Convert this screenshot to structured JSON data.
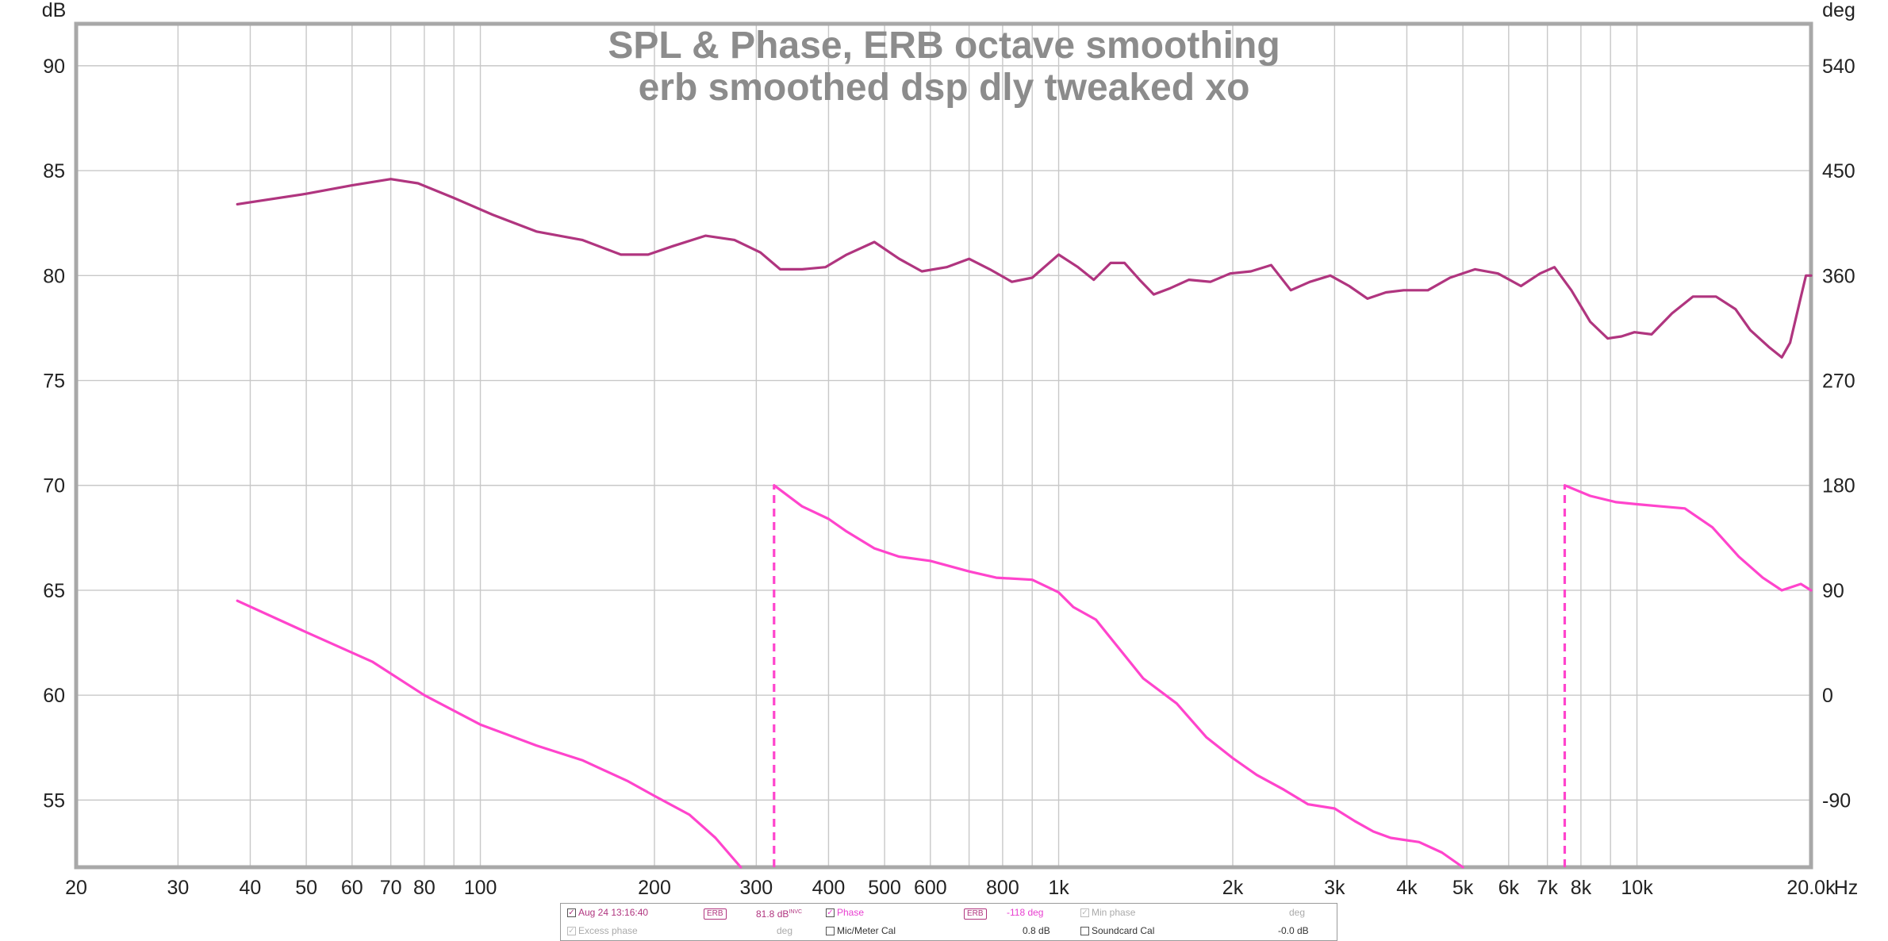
{
  "chart_data": {
    "type": "line",
    "title": "SPL & Phase, ERB octave smoothing",
    "subtitle": "erb smoothed dsp dly tweaked xo",
    "left_axis": {
      "unit": "dB",
      "ylim": [
        51.8,
        92
      ],
      "ticks": [
        55,
        60,
        65,
        70,
        75,
        80,
        85,
        90
      ]
    },
    "right_axis": {
      "unit": "deg",
      "ticks": [
        {
          "at": 55,
          "label": "-90"
        },
        {
          "at": 60,
          "label": "0"
        },
        {
          "at": 65,
          "label": "90"
        },
        {
          "at": 70,
          "label": "180"
        },
        {
          "at": 75,
          "label": "270"
        },
        {
          "at": 80,
          "label": "360"
        },
        {
          "at": 85,
          "label": "450"
        },
        {
          "at": 90,
          "label": "540"
        }
      ]
    },
    "x_axis": {
      "scale": "log",
      "unit": "Hz",
      "xlim": [
        20,
        20000
      ],
      "ticks": [
        {
          "v": 20,
          "label": "20"
        },
        {
          "v": 30,
          "label": "30"
        },
        {
          "v": 40,
          "label": "40"
        },
        {
          "v": 50,
          "label": "50"
        },
        {
          "v": 60,
          "label": "60"
        },
        {
          "v": 70,
          "label": "70"
        },
        {
          "v": 80,
          "label": "80"
        },
        {
          "v": 100,
          "label": "100"
        },
        {
          "v": 200,
          "label": "200"
        },
        {
          "v": 300,
          "label": "300"
        },
        {
          "v": 400,
          "label": "400"
        },
        {
          "v": 500,
          "label": "500"
        },
        {
          "v": 600,
          "label": "600"
        },
        {
          "v": 800,
          "label": "800"
        },
        {
          "v": 1000,
          "label": "1k"
        },
        {
          "v": 2000,
          "label": "2k"
        },
        {
          "v": 3000,
          "label": "3k"
        },
        {
          "v": 4000,
          "label": "4k"
        },
        {
          "v": 5000,
          "label": "5k"
        },
        {
          "v": 6000,
          "label": "6k"
        },
        {
          "v": 7000,
          "label": "7k"
        },
        {
          "v": 8000,
          "label": "8k"
        },
        {
          "v": 10000,
          "label": "10k"
        },
        {
          "v": 20000,
          "label": "20.0k"
        }
      ],
      "gridlines": [
        20,
        30,
        40,
        50,
        60,
        70,
        80,
        90,
        100,
        200,
        300,
        400,
        500,
        600,
        700,
        800,
        900,
        1000,
        2000,
        3000,
        4000,
        5000,
        6000,
        7000,
        8000,
        9000,
        10000,
        20000
      ]
    },
    "grid": true,
    "series": [
      {
        "name": "SPL",
        "color": "#b0357f",
        "axis": "dB",
        "points": [
          [
            38,
            83.4
          ],
          [
            50,
            83.9
          ],
          [
            60,
            84.3
          ],
          [
            70,
            84.6
          ],
          [
            78,
            84.4
          ],
          [
            90,
            83.7
          ],
          [
            105,
            82.9
          ],
          [
            125,
            82.1
          ],
          [
            150,
            81.7
          ],
          [
            175,
            81.0
          ],
          [
            195,
            81.0
          ],
          [
            215,
            81.4
          ],
          [
            245,
            81.9
          ],
          [
            275,
            81.7
          ],
          [
            305,
            81.1
          ],
          [
            330,
            80.3
          ],
          [
            360,
            80.3
          ],
          [
            395,
            80.4
          ],
          [
            430,
            81.0
          ],
          [
            480,
            81.6
          ],
          [
            530,
            80.8
          ],
          [
            580,
            80.2
          ],
          [
            640,
            80.4
          ],
          [
            700,
            80.8
          ],
          [
            760,
            80.3
          ],
          [
            830,
            79.7
          ],
          [
            900,
            79.9
          ],
          [
            1000,
            81.0
          ],
          [
            1080,
            80.4
          ],
          [
            1150,
            79.8
          ],
          [
            1230,
            80.6
          ],
          [
            1300,
            80.6
          ],
          [
            1380,
            79.8
          ],
          [
            1460,
            79.1
          ],
          [
            1560,
            79.4
          ],
          [
            1680,
            79.8
          ],
          [
            1830,
            79.7
          ],
          [
            1980,
            80.1
          ],
          [
            2150,
            80.2
          ],
          [
            2330,
            80.5
          ],
          [
            2520,
            79.3
          ],
          [
            2720,
            79.7
          ],
          [
            2950,
            80.0
          ],
          [
            3180,
            79.5
          ],
          [
            3420,
            78.9
          ],
          [
            3680,
            79.2
          ],
          [
            3950,
            79.3
          ],
          [
            4350,
            79.3
          ],
          [
            4750,
            79.9
          ],
          [
            5250,
            80.3
          ],
          [
            5750,
            80.1
          ],
          [
            6300,
            79.5
          ],
          [
            6800,
            80.1
          ],
          [
            7200,
            80.4
          ],
          [
            7700,
            79.3
          ],
          [
            8300,
            77.8
          ],
          [
            8900,
            77.0
          ],
          [
            9400,
            77.1
          ],
          [
            9900,
            77.3
          ],
          [
            10600,
            77.2
          ],
          [
            11500,
            78.2
          ],
          [
            12500,
            79.0
          ],
          [
            13700,
            79.0
          ],
          [
            14800,
            78.4
          ],
          [
            15700,
            77.4
          ],
          [
            16900,
            76.6
          ],
          [
            17800,
            76.1
          ],
          [
            18400,
            76.8
          ],
          [
            19100,
            78.7
          ],
          [
            19600,
            80.0
          ],
          [
            20000,
            80.0
          ]
        ]
      },
      {
        "name": "Phase",
        "color": "#ff44cc",
        "axis": "deg",
        "points": [
          [
            38,
            64.5
          ],
          [
            50,
            63.0
          ],
          [
            65,
            61.6
          ],
          [
            80,
            60.0
          ],
          [
            100,
            58.6
          ],
          [
            125,
            57.6
          ],
          [
            150,
            56.9
          ],
          [
            180,
            55.9
          ],
          [
            200,
            55.2
          ],
          [
            230,
            54.3
          ],
          [
            255,
            53.2
          ],
          [
            282,
            51.8
          ],
          null,
          [
            322,
            70.0
          ],
          [
            360,
            69.0
          ],
          [
            400,
            68.4
          ],
          [
            430,
            67.8
          ],
          [
            480,
            67.0
          ],
          [
            530,
            66.6
          ],
          [
            600,
            66.4
          ],
          [
            700,
            65.9
          ],
          [
            780,
            65.6
          ],
          [
            900,
            65.5
          ],
          [
            1000,
            64.9
          ],
          [
            1060,
            64.2
          ],
          [
            1160,
            63.6
          ],
          [
            1240,
            62.6
          ],
          [
            1400,
            60.8
          ],
          [
            1600,
            59.6
          ],
          [
            1800,
            58.0
          ],
          [
            2000,
            57.0
          ],
          [
            2200,
            56.2
          ],
          [
            2450,
            55.5
          ],
          [
            2700,
            54.8
          ],
          [
            3000,
            54.6
          ],
          [
            3250,
            54.0
          ],
          [
            3500,
            53.5
          ],
          [
            3750,
            53.2
          ],
          [
            4200,
            53.0
          ],
          [
            4600,
            52.5
          ],
          [
            5000,
            51.8
          ],
          null,
          [
            7500,
            70.0
          ],
          [
            8300,
            69.5
          ],
          [
            9200,
            69.2
          ],
          [
            10000,
            69.1
          ],
          [
            11000,
            69.0
          ],
          [
            12100,
            68.9
          ],
          [
            13500,
            68.0
          ],
          [
            15000,
            66.6
          ],
          [
            16500,
            65.6
          ],
          [
            17800,
            65.0
          ],
          [
            19200,
            65.3
          ],
          [
            20000,
            65.0
          ]
        ]
      }
    ],
    "dropouts": [
      {
        "x": 322,
        "from": 51.8,
        "to": 70.0
      },
      {
        "x": 7500,
        "from": 51.8,
        "to": 70.0
      }
    ],
    "hz_label": "Hz"
  },
  "legend": {
    "row1": {
      "meas_name": "Aug 24 13:16:40",
      "erb1": "ERB",
      "mag_value": "81.8 dB",
      "mag_sup": "INVC",
      "phase_label": "Phase",
      "erb2": "ERB",
      "phase_value": "-118 deg",
      "minphase_label": "Min phase",
      "minphase_unit": "deg"
    },
    "row2": {
      "excess_label": "Excess phase",
      "excess_unit": "deg",
      "mic_label": "Mic/Meter Cal",
      "mic_value": "0.8 dB",
      "sc_label": "Soundcard Cal",
      "sc_value": "-0.0 dB"
    }
  }
}
